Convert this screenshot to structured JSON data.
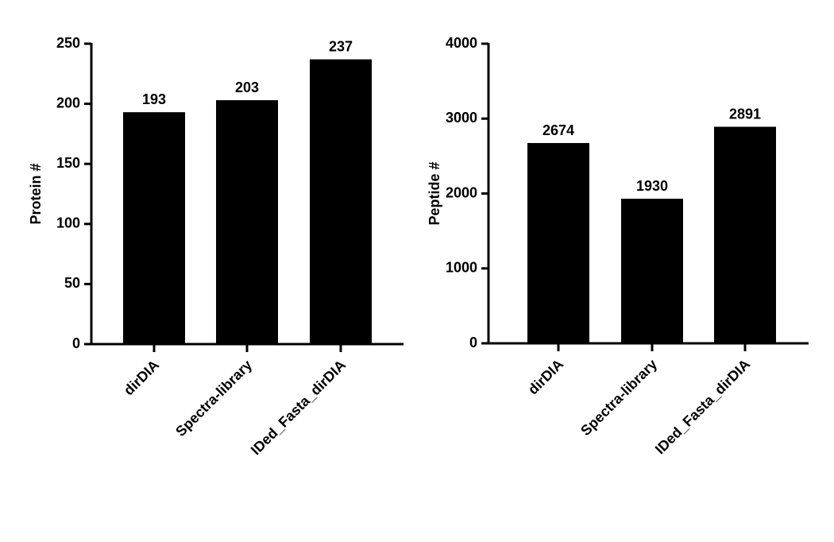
{
  "chart_data": [
    {
      "type": "bar",
      "ylabel": "Protein #",
      "categories": [
        "dirDIA",
        "Spectra-library",
        "IDed_Fasta_dirDIA"
      ],
      "values": [
        193,
        203,
        237
      ],
      "color": "#000000",
      "ylim": [
        0,
        250
      ],
      "yticks": [
        0,
        50,
        100,
        150,
        200,
        250
      ]
    },
    {
      "type": "bar",
      "ylabel": "Peptide #",
      "categories": [
        "dirDIA",
        "Spectra-library",
        "IDed_Fasta_dirDIA"
      ],
      "values": [
        2674,
        1930,
        2891
      ],
      "color": "#000000",
      "ylim": [
        0,
        4000
      ],
      "yticks": [
        0,
        1000,
        2000,
        3000,
        4000
      ]
    }
  ]
}
